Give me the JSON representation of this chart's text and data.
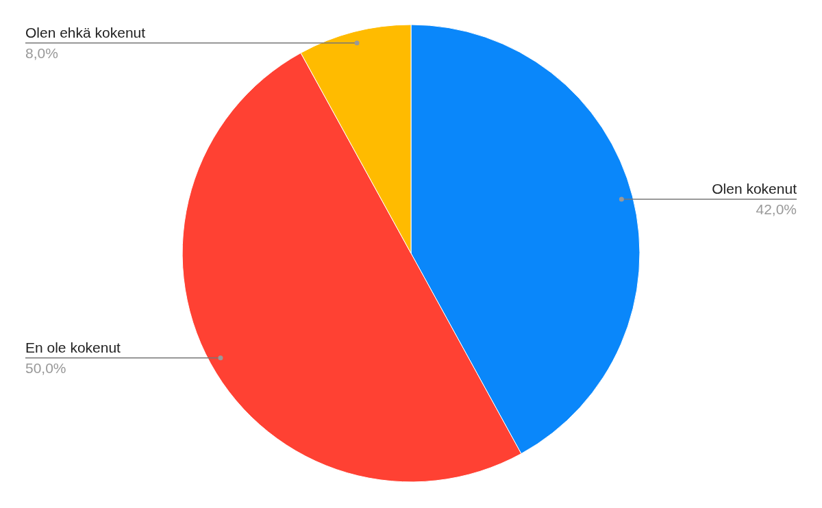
{
  "chart_data": {
    "type": "pie",
    "categories": [
      "Olen kokenut",
      "En ole kokenut",
      "Olen ehkä kokenut"
    ],
    "values": [
      42,
      50,
      8
    ],
    "colors": [
      "#0a87fa",
      "#ff4133",
      "#ffbb00"
    ],
    "value_labels": [
      "42,0%",
      "50,0%",
      "8,0%"
    ],
    "legend": false
  }
}
